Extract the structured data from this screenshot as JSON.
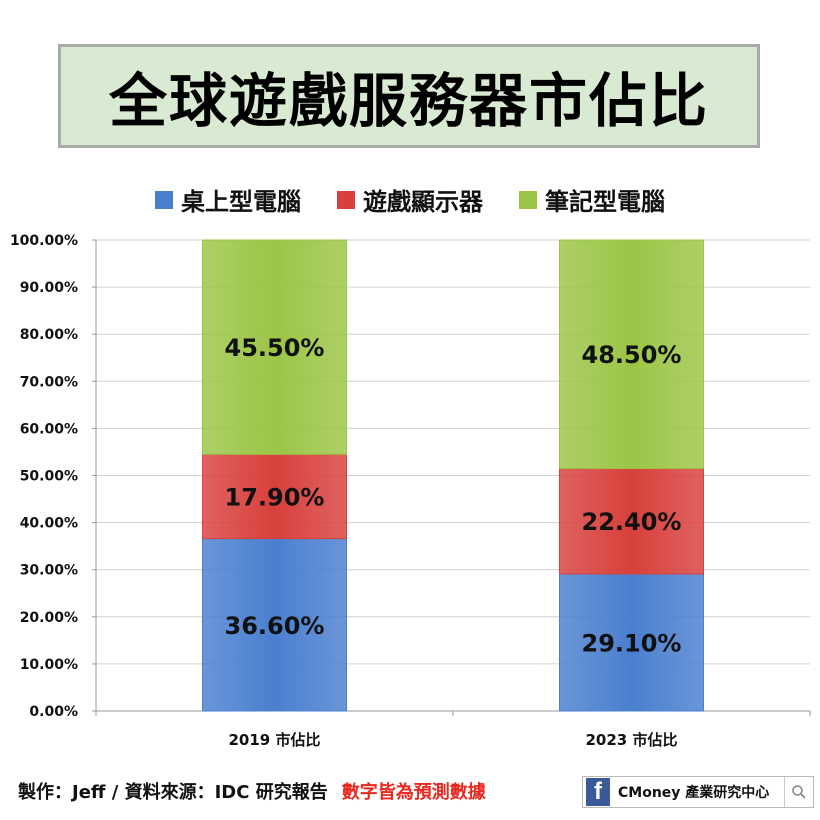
{
  "title": "全球遊戲服務器市佔比",
  "legend": [
    {
      "label": "桌上型電腦",
      "color": "#4a7fcf"
    },
    {
      "label": "遊戲顯示器",
      "color": "#d8403c"
    },
    {
      "label": "筆記型電腦",
      "color": "#9bc546"
    }
  ],
  "chart_data": {
    "type": "bar",
    "stacked": true,
    "categories": [
      "2019 市佔比",
      "2023 市佔比"
    ],
    "series": [
      {
        "name": "桌上型電腦",
        "values": [
          36.6,
          29.1
        ],
        "labels": [
          "36.60%",
          "29.10%"
        ],
        "color": "#4a7fcf"
      },
      {
        "name": "遊戲顯示器",
        "values": [
          17.9,
          22.4
        ],
        "labels": [
          "17.90%",
          "22.40%"
        ],
        "color": "#d8403c"
      },
      {
        "name": "筆記型電腦",
        "values": [
          45.5,
          48.5
        ],
        "labels": [
          "45.50%",
          "48.50%"
        ],
        "color": "#9bc546"
      }
    ],
    "ylim": [
      0,
      100
    ],
    "yticks": [
      "0.00%",
      "10.00%",
      "20.00%",
      "30.00%",
      "40.00%",
      "50.00%",
      "60.00%",
      "70.00%",
      "80.00%",
      "90.00%",
      "100.00%"
    ],
    "grid": true,
    "legend_position": "top"
  },
  "footer": {
    "credit": "製作：Jeff / 資料來源：IDC 研究報告",
    "note": "數字皆為預測數據"
  },
  "brand": {
    "fb_letter": "f",
    "text": "CMoney 產業研究中心"
  }
}
